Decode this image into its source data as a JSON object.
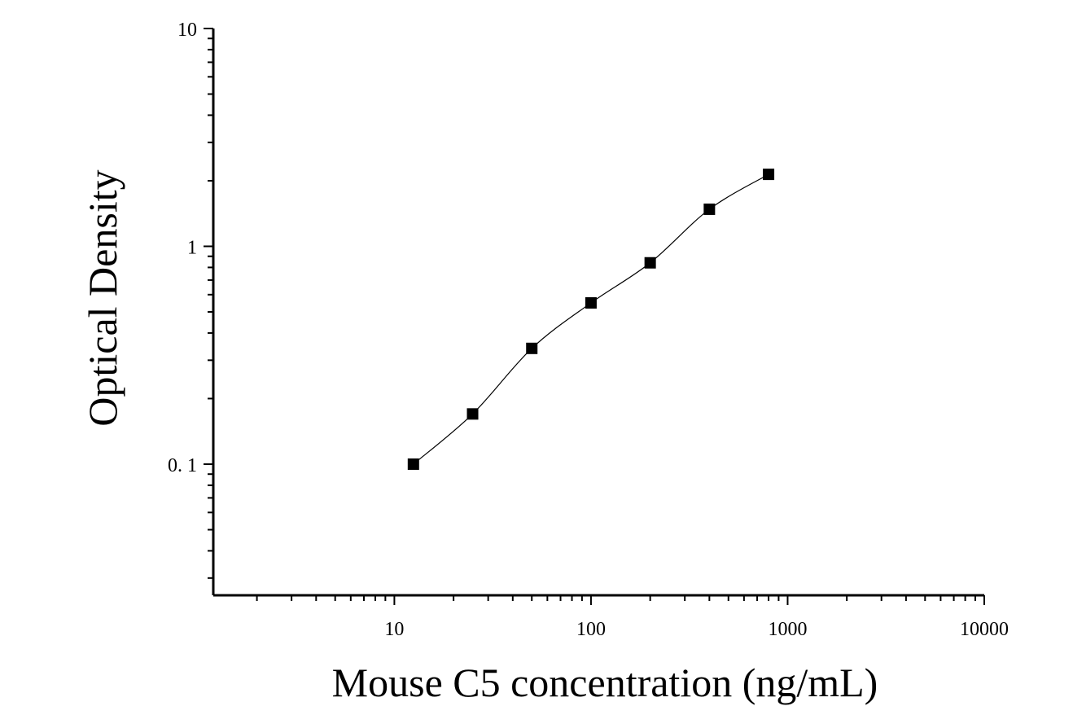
{
  "chart_data": {
    "type": "scatter",
    "xlabel": "Mouse C5 concentration (ng/mL)",
    "ylabel": "Optical Density",
    "x_scale": "log",
    "y_scale": "log",
    "xlim": [
      1.2,
      10000
    ],
    "ylim": [
      0.025,
      10
    ],
    "x_ticks": [
      10,
      100,
      1000,
      10000
    ],
    "x_tick_labels": [
      "10",
      "100",
      "1000",
      "10000"
    ],
    "y_ticks": [
      0.1,
      1,
      10
    ],
    "y_tick_labels": [
      "0. 1",
      "1",
      "10"
    ],
    "grid": false,
    "series": [
      {
        "marker": "square",
        "fit_line": true,
        "x": [
          12.5,
          25,
          50,
          100,
          200,
          400,
          800
        ],
        "y": [
          0.1,
          0.17,
          0.34,
          0.55,
          0.84,
          1.48,
          2.14
        ]
      }
    ],
    "colors": {
      "marker": "#000000",
      "line": "#000000",
      "axis": "#000000"
    }
  }
}
